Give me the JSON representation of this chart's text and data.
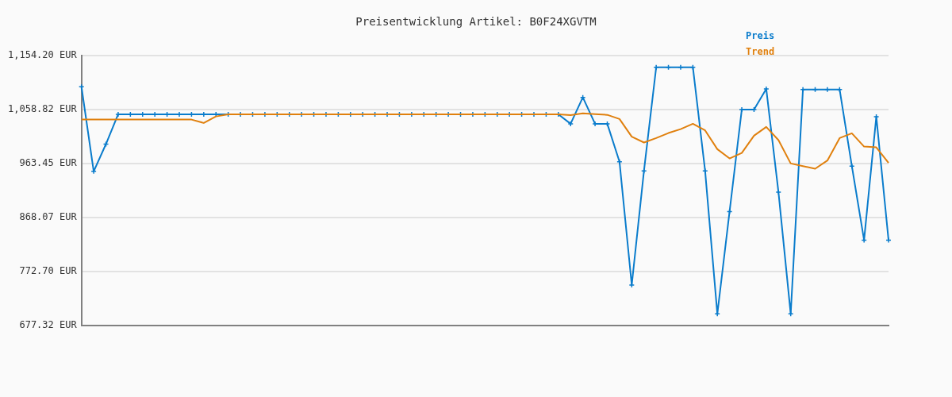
{
  "chart_data": {
    "type": "line",
    "title": "Preisentwicklung Artikel: B0F24XGVTM",
    "categories": [
      null,
      null,
      null,
      null,
      null,
      null,
      null,
      null,
      null,
      null,
      null,
      null,
      null,
      null,
      null,
      null,
      null,
      null,
      null,
      null,
      null,
      null,
      null,
      null,
      null,
      null,
      null,
      null,
      null,
      null,
      null,
      null,
      null,
      null,
      null,
      null,
      null,
      null,
      null,
      null,
      null,
      null,
      null,
      null,
      null,
      null,
      null,
      null,
      null,
      null,
      null,
      null,
      null,
      null,
      null,
      null,
      null,
      null,
      null,
      null,
      null,
      null,
      null,
      null,
      null,
      null,
      null
    ],
    "series": [
      {
        "name": "Preis",
        "color": "#0a7ccc",
        "marker": "cross",
        "values": [
          1099.1,
          949.4,
          997.6,
          1050.4,
          1050.4,
          1050.4,
          1050.4,
          1050.4,
          1050.4,
          1050.4,
          1050.4,
          1050.4,
          1050.4,
          1050.4,
          1050.4,
          1050.4,
          1050.4,
          1050.4,
          1050.4,
          1050.4,
          1050.4,
          1050.4,
          1050.4,
          1050.4,
          1050.4,
          1050.4,
          1050.4,
          1050.4,
          1050.4,
          1050.4,
          1050.4,
          1050.4,
          1050.4,
          1050.4,
          1050.4,
          1050.4,
          1050.4,
          1050.4,
          1050.4,
          1050.4,
          1033.6,
          1080.3,
          1033.6,
          1033.6,
          966.3,
          748.4,
          950.4,
          1133.6,
          1133.6,
          1133.6,
          1133.6,
          950.4,
          697.4,
          878.3,
          1058.8,
          1058.8,
          1095.3,
          912.5,
          697.4,
          1094.3,
          1094.3,
          1094.3,
          1094.3,
          958.8,
          827.8,
          1046.2,
          827.8
        ]
      },
      {
        "name": "Trend",
        "color": "#e0800e",
        "marker": "none",
        "values": [
          1041.0,
          1041.0,
          1041.0,
          1041.0,
          1041.0,
          1041.0,
          1041.0,
          1041.0,
          1041.0,
          1041.0,
          1035.0,
          1046.6,
          1050.4,
          1050.4,
          1050.4,
          1050.4,
          1050.4,
          1050.4,
          1050.4,
          1050.4,
          1050.4,
          1050.4,
          1050.4,
          1050.4,
          1050.4,
          1050.4,
          1050.4,
          1050.4,
          1050.4,
          1050.4,
          1050.4,
          1050.4,
          1050.4,
          1050.4,
          1050.4,
          1050.4,
          1050.4,
          1050.4,
          1050.4,
          1050.4,
          1049.0,
          1052.2,
          1050.8,
          1049.4,
          1042.0,
          1010.7,
          1000.4,
          1008.3,
          1017.2,
          1024.2,
          1033.6,
          1021.9,
          988.7,
          972.3,
          982.1,
          1012.5,
          1028.0,
          1004.6,
          963.4,
          958.8,
          954.1,
          968.6,
          1008.3,
          1016.7,
          993.3,
          991.9,
          964.4
        ]
      }
    ],
    "ylim": [
      677.32,
      1154.2
    ],
    "yticks": [
      {
        "value": 677.32,
        "label": "677.32 EUR"
      },
      {
        "value": 772.7,
        "label": "772.70 EUR"
      },
      {
        "value": 868.07,
        "label": "868.07 EUR"
      },
      {
        "value": 963.45,
        "label": "963.45 EUR"
      },
      {
        "value": 1058.82,
        "label": "1,058.82 EUR"
      },
      {
        "value": 1154.2,
        "label": "1,154.20 EUR"
      }
    ],
    "grid": "y",
    "legend": "top right",
    "line_style": "solid"
  }
}
